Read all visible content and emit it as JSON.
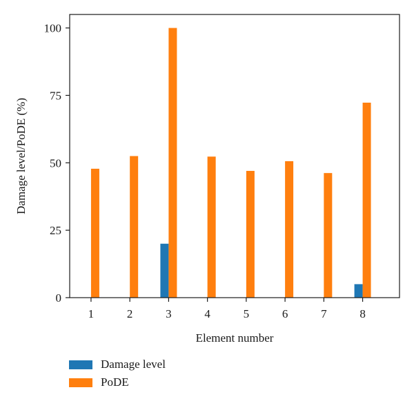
{
  "chart_data": {
    "type": "bar",
    "xlabel": "Element number",
    "ylabel": "Damage level/PoDE (%)",
    "categories": [
      "1",
      "2",
      "3",
      "4",
      "5",
      "6",
      "7",
      "8"
    ],
    "ylim": [
      0,
      105
    ],
    "yticks": [
      0,
      25,
      50,
      75,
      100
    ],
    "series": [
      {
        "name": "Damage level",
        "color": "#1f77b4",
        "values": [
          0,
          0,
          20,
          0,
          0,
          0,
          0,
          5
        ]
      },
      {
        "name": "PoDE",
        "color": "#ff7f0e",
        "values": [
          47.8,
          52.5,
          100,
          52.3,
          47,
          50.6,
          46.2,
          72.3
        ]
      }
    ],
    "grid": false,
    "legend_position": "bottom-left"
  }
}
